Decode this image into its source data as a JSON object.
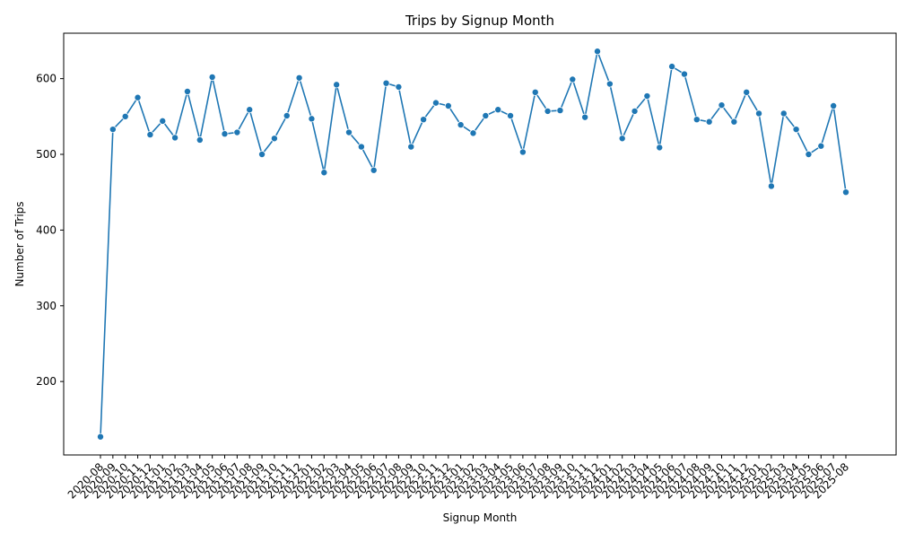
{
  "chart_data": {
    "type": "line",
    "title": "Trips by Signup Month",
    "xlabel": "Signup Month",
    "ylabel": "Number of Trips",
    "ylim": [
      103,
      660
    ],
    "yticks": [
      200,
      300,
      400,
      500,
      600
    ],
    "grid": false,
    "legend": "none",
    "line_color": "#1f77b4",
    "categories": [
      "2020-08",
      "2020-09",
      "2020-10",
      "2020-11",
      "2020-12",
      "2021-01",
      "2021-02",
      "2021-03",
      "2021-04",
      "2021-05",
      "2021-06",
      "2021-07",
      "2021-08",
      "2021-09",
      "2021-10",
      "2021-11",
      "2021-12",
      "2022-01",
      "2022-02",
      "2022-03",
      "2022-04",
      "2022-05",
      "2022-06",
      "2022-07",
      "2022-08",
      "2022-09",
      "2022-10",
      "2022-11",
      "2022-12",
      "2023-01",
      "2023-02",
      "2023-03",
      "2023-04",
      "2023-05",
      "2023-06",
      "2023-07",
      "2023-08",
      "2023-09",
      "2023-10",
      "2023-11",
      "2023-12",
      "2024-01",
      "2024-02",
      "2024-03",
      "2024-04",
      "2024-05",
      "2024-06",
      "2024-07",
      "2024-08",
      "2024-09",
      "2024-10",
      "2024-11",
      "2024-12",
      "2025-01",
      "2025-02",
      "2025-03",
      "2025-04",
      "2025-05",
      "2025-06",
      "2025-07",
      "2025-08"
    ],
    "values": [
      127,
      533,
      550,
      575,
      526,
      544,
      522,
      583,
      519,
      602,
      527,
      529,
      559,
      500,
      521,
      551,
      601,
      547,
      476,
      592,
      529,
      510,
      479,
      594,
      589,
      510,
      546,
      568,
      564,
      539,
      528,
      551,
      559,
      551,
      503,
      582,
      557,
      558,
      599,
      549,
      636,
      593,
      521,
      557,
      577,
      509,
      616,
      606,
      546,
      543,
      565,
      543,
      582,
      554,
      458,
      554,
      533,
      500,
      511,
      564,
      450
    ]
  }
}
